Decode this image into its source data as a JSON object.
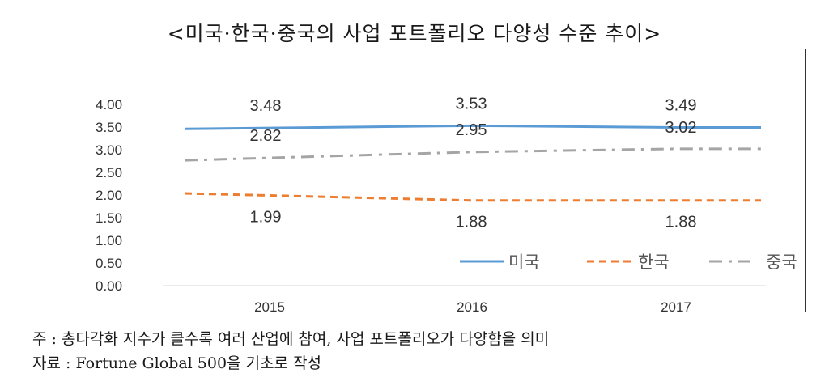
{
  "chart_data": {
    "type": "line",
    "title": "<미국·한국·중국의 사업 포트폴리오 다양성 수준 추이>",
    "categories": [
      "2015",
      "2016",
      "2017"
    ],
    "yticks": [
      "0.00",
      "0.50",
      "1.00",
      "1.50",
      "2.00",
      "2.50",
      "3.00",
      "3.50",
      "4.00"
    ],
    "ylim": [
      0,
      4
    ],
    "grid": false,
    "legend_position": "bottom-right",
    "series": [
      {
        "name": "미국",
        "values": [
          3.48,
          3.53,
          3.49
        ],
        "labels": [
          "3.48",
          "3.53",
          "3.49"
        ],
        "color": "#5b9bd5",
        "dash": "solid"
      },
      {
        "name": "한국",
        "values": [
          1.99,
          1.88,
          1.88
        ],
        "labels": [
          "1.99",
          "1.88",
          "1.88"
        ],
        "color": "#ed7d31",
        "dash": "dash"
      },
      {
        "name": "중국",
        "values": [
          2.82,
          2.95,
          3.02
        ],
        "labels": [
          "2.82",
          "2.95",
          "3.02"
        ],
        "color": "#a5a5a5",
        "dash": "dashdot"
      }
    ]
  },
  "notes": {
    "note1": "주 : 총다각화 지수가 클수록 여러 산업에 참여, 사업 포트폴리오가 다양함을 의미",
    "note2": "자료 : Fortune Global 500을 기초로 작성"
  }
}
